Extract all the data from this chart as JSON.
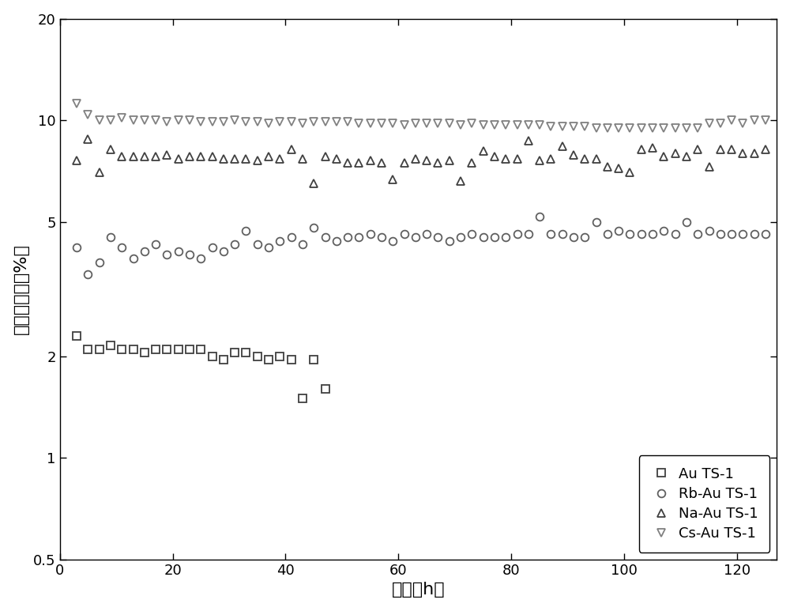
{
  "title": "",
  "xlabel": "时间（h）",
  "ylabel": "丙烯转化率（%）",
  "xlim": [
    0,
    127
  ],
  "ylim_log": [
    0.5,
    20
  ],
  "yticks": [
    0.5,
    1,
    2,
    5,
    10,
    20
  ],
  "ytick_labels": [
    "0.5",
    "1",
    "2",
    "5",
    "10",
    "20"
  ],
  "xticks": [
    0,
    20,
    40,
    60,
    80,
    100,
    120
  ],
  "Au_TS1_x": [
    3,
    5,
    7,
    9,
    11,
    13,
    15,
    17,
    19,
    21,
    23,
    25,
    27,
    29,
    31,
    33,
    35,
    37,
    39,
    41,
    43,
    45,
    47
  ],
  "Au_TS1_y": [
    2.3,
    2.1,
    2.1,
    2.15,
    2.1,
    2.1,
    2.05,
    2.1,
    2.1,
    2.1,
    2.1,
    2.1,
    2.0,
    1.95,
    2.05,
    2.05,
    2.0,
    1.95,
    2.0,
    1.95,
    1.5,
    1.95,
    1.6
  ],
  "Rb_Au_TS1_x": [
    3,
    5,
    7,
    9,
    11,
    13,
    15,
    17,
    19,
    21,
    23,
    25,
    27,
    29,
    31,
    33,
    35,
    37,
    39,
    41,
    43,
    45,
    47,
    49,
    51,
    53,
    55,
    57,
    59,
    61,
    63,
    65,
    67,
    69,
    71,
    73,
    75,
    77,
    79,
    81,
    83,
    85,
    87,
    89,
    91,
    93,
    95,
    97,
    99,
    101,
    103,
    105,
    107,
    109,
    111,
    113,
    115,
    117,
    119,
    121,
    123,
    125
  ],
  "Rb_Au_TS1_y": [
    4.2,
    3.5,
    3.8,
    4.5,
    4.2,
    3.9,
    4.1,
    4.3,
    4.0,
    4.1,
    4.0,
    3.9,
    4.2,
    4.1,
    4.3,
    4.7,
    4.3,
    4.2,
    4.4,
    4.5,
    4.3,
    4.8,
    4.5,
    4.4,
    4.5,
    4.5,
    4.6,
    4.5,
    4.4,
    4.6,
    4.5,
    4.6,
    4.5,
    4.4,
    4.5,
    4.6,
    4.5,
    4.5,
    4.5,
    4.6,
    4.6,
    5.2,
    4.6,
    4.6,
    4.5,
    4.5,
    5.0,
    4.6,
    4.7,
    4.6,
    4.6,
    4.6,
    4.7,
    4.6,
    5.0,
    4.6,
    4.7,
    4.6,
    4.6,
    4.6,
    4.6,
    4.6
  ],
  "Na_Au_TS1_x": [
    3,
    5,
    7,
    9,
    11,
    13,
    15,
    17,
    19,
    21,
    23,
    25,
    27,
    29,
    31,
    33,
    35,
    37,
    39,
    41,
    43,
    45,
    47,
    49,
    51,
    53,
    55,
    57,
    59,
    61,
    63,
    65,
    67,
    69,
    71,
    73,
    75,
    77,
    79,
    81,
    83,
    85,
    87,
    89,
    91,
    93,
    95,
    97,
    99,
    101,
    103,
    105,
    107,
    109,
    111,
    113,
    115,
    117,
    119,
    121,
    123,
    125
  ],
  "Na_Au_TS1_y": [
    7.6,
    8.8,
    7.0,
    8.2,
    7.8,
    7.8,
    7.8,
    7.8,
    7.9,
    7.7,
    7.8,
    7.8,
    7.8,
    7.7,
    7.7,
    7.7,
    7.6,
    7.8,
    7.7,
    8.2,
    7.7,
    6.5,
    7.8,
    7.7,
    7.5,
    7.5,
    7.6,
    7.5,
    6.7,
    7.5,
    7.7,
    7.6,
    7.5,
    7.6,
    6.6,
    7.5,
    8.1,
    7.8,
    7.7,
    7.7,
    8.7,
    7.6,
    7.7,
    8.4,
    7.9,
    7.7,
    7.7,
    7.3,
    7.2,
    7.0,
    8.2,
    8.3,
    7.8,
    8.0,
    7.8,
    8.2,
    7.3,
    8.2,
    8.2,
    8.0,
    8.0,
    8.2
  ],
  "Cs_Au_TS1_x": [
    3,
    5,
    7,
    9,
    11,
    13,
    15,
    17,
    19,
    21,
    23,
    25,
    27,
    29,
    31,
    33,
    35,
    37,
    39,
    41,
    43,
    45,
    47,
    49,
    51,
    53,
    55,
    57,
    59,
    61,
    63,
    65,
    67,
    69,
    71,
    73,
    75,
    77,
    79,
    81,
    83,
    85,
    87,
    89,
    91,
    93,
    95,
    97,
    99,
    101,
    103,
    105,
    107,
    109,
    111,
    113,
    115,
    117,
    119,
    121,
    123,
    125
  ],
  "Cs_Au_TS1_y": [
    11.2,
    10.4,
    10.0,
    10.0,
    10.2,
    10.0,
    10.0,
    10.0,
    9.9,
    10.0,
    10.0,
    9.9,
    9.9,
    9.9,
    10.0,
    9.9,
    9.9,
    9.8,
    9.9,
    9.9,
    9.8,
    9.9,
    9.9,
    9.9,
    9.9,
    9.8,
    9.8,
    9.8,
    9.8,
    9.7,
    9.8,
    9.8,
    9.8,
    9.8,
    9.7,
    9.8,
    9.7,
    9.7,
    9.7,
    9.7,
    9.7,
    9.7,
    9.6,
    9.6,
    9.6,
    9.6,
    9.5,
    9.5,
    9.5,
    9.5,
    9.5,
    9.5,
    9.5,
    9.5,
    9.5,
    9.5,
    9.8,
    9.8,
    10.0,
    9.8,
    10.0,
    10.0
  ],
  "color_Au": "#404040",
  "color_Rb": "#606060",
  "color_Na": "#404040",
  "color_Cs": "#808080",
  "legend_labels": [
    "Au TS-1",
    "Rb-Au TS-1",
    "Na-Au TS-1",
    "Cs-Au TS-1"
  ],
  "marker_size": 7,
  "fontsize_label": 16,
  "fontsize_tick": 13,
  "fontsize_legend": 13
}
